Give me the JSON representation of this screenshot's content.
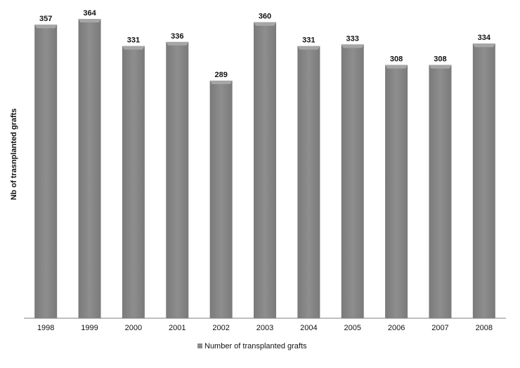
{
  "chart_data": {
    "type": "bar",
    "categories": [
      "1998",
      "1999",
      "2000",
      "2001",
      "2002",
      "2003",
      "2004",
      "2005",
      "2006",
      "2007",
      "2008"
    ],
    "series": [
      {
        "name": "Number of transplanted grafts",
        "values": [
          357,
          364,
          331,
          336,
          289,
          360,
          331,
          333,
          308,
          308,
          334
        ]
      }
    ],
    "title": "",
    "xlabel": "",
    "ylabel": "Nb of trasnplanted grafts",
    "ylim": [
      0,
      364
    ],
    "grid": false,
    "legend_position": "bottom",
    "colors": {
      "bar": "#8c8c8c",
      "bar_highlight": "#a6a6a6",
      "axis": "#7f7f7f"
    }
  }
}
